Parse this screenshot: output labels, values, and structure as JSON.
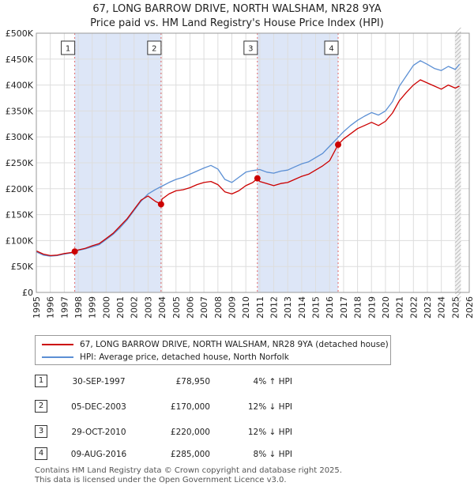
{
  "title_line1": "67, LONG BARROW DRIVE, NORTH WALSHAM, NR28 9YA",
  "title_line2": "Price paid vs. HM Land Registry's House Price Index (HPI)",
  "colors": {
    "price": "#cc0000",
    "hpi": "#5b8fd4",
    "shade": "#dde6f7",
    "grid": "#dddddd"
  },
  "legend": {
    "price_label": "67, LONG BARROW DRIVE, NORTH WALSHAM, NR28 9YA (detached house)",
    "hpi_label": "HPI: Average price, detached house, North Norfolk"
  },
  "sales": [
    {
      "num": "1",
      "date": "30-SEP-1997",
      "price": "£78,950",
      "hpi": "4% ↑ HPI"
    },
    {
      "num": "2",
      "date": "05-DEC-2003",
      "price": "£170,000",
      "hpi": "12% ↓ HPI"
    },
    {
      "num": "3",
      "date": "29-OCT-2010",
      "price": "£220,000",
      "hpi": "12% ↓ HPI"
    },
    {
      "num": "4",
      "date": "09-AUG-2016",
      "price": "£285,000",
      "hpi": "8% ↓ HPI"
    }
  ],
  "footer_line1": "Contains HM Land Registry data © Crown copyright and database right 2025.",
  "footer_line2": "This data is licensed under the Open Government Licence v3.0.",
  "chart_data": {
    "type": "line",
    "title": "67, LONG BARROW DRIVE, NORTH WALSHAM, NR28 9YA — Price paid vs. HM Land Registry's House Price Index (HPI)",
    "xlabel": "",
    "ylabel": "",
    "xlim": [
      1995,
      2026
    ],
    "ylim": [
      0,
      500000
    ],
    "x_ticks": [
      1995,
      1996,
      1997,
      1998,
      1999,
      2000,
      2001,
      2002,
      2003,
      2004,
      2005,
      2006,
      2007,
      2008,
      2009,
      2010,
      2011,
      2012,
      2013,
      2014,
      2015,
      2016,
      2017,
      2018,
      2019,
      2020,
      2021,
      2022,
      2023,
      2024,
      2025,
      2026
    ],
    "y_ticks": [
      {
        "value": 0,
        "label": "£0"
      },
      {
        "value": 50000,
        "label": "£50K"
      },
      {
        "value": 100000,
        "label": "£100K"
      },
      {
        "value": 150000,
        "label": "£150K"
      },
      {
        "value": 200000,
        "label": "£200K"
      },
      {
        "value": 250000,
        "label": "£250K"
      },
      {
        "value": 300000,
        "label": "£300K"
      },
      {
        "value": 350000,
        "label": "£350K"
      },
      {
        "value": 400000,
        "label": "£400K"
      },
      {
        "value": 450000,
        "label": "£450K"
      },
      {
        "value": 500000,
        "label": "£500K"
      }
    ],
    "shaded_periods": [
      [
        1997.75,
        2003.93
      ],
      [
        2010.83,
        2016.61
      ]
    ],
    "forecast_start": 2025.0,
    "markers": [
      {
        "label": "1",
        "x": 1997.75,
        "y": 78950
      },
      {
        "label": "2",
        "x": 2003.93,
        "y": 170000
      },
      {
        "label": "3",
        "x": 2010.83,
        "y": 220000
      },
      {
        "label": "4",
        "x": 2016.61,
        "y": 285000
      }
    ],
    "series": [
      {
        "name": "HPI: Average price, detached house, North Norfolk",
        "x": [
          1995,
          1995.5,
          1996,
          1996.5,
          1997,
          1997.5,
          1998,
          1998.5,
          1999,
          1999.5,
          2000,
          2000.5,
          2001,
          2001.5,
          2002,
          2002.5,
          2003,
          2003.5,
          2004,
          2004.5,
          2005,
          2005.5,
          2006,
          2006.5,
          2007,
          2007.5,
          2008,
          2008.5,
          2009,
          2009.5,
          2010,
          2010.5,
          2011,
          2011.5,
          2012,
          2012.5,
          2013,
          2013.5,
          2014,
          2014.5,
          2015,
          2015.5,
          2016,
          2016.5,
          2017,
          2017.5,
          2018,
          2018.5,
          2019,
          2019.5,
          2020,
          2020.5,
          2021,
          2021.5,
          2022,
          2022.5,
          2023,
          2023.5,
          2024,
          2024.5,
          2025,
          2025.3
        ],
        "values": [
          78000,
          72000,
          70000,
          71000,
          74000,
          76000,
          81000,
          84000,
          88000,
          92000,
          102000,
          112000,
          125000,
          140000,
          158000,
          176000,
          190000,
          198000,
          205000,
          212000,
          218000,
          222000,
          228000,
          234000,
          240000,
          245000,
          238000,
          218000,
          212000,
          222000,
          232000,
          235000,
          237000,
          232000,
          230000,
          234000,
          236000,
          242000,
          248000,
          252000,
          260000,
          268000,
          282000,
          296000,
          310000,
          322000,
          332000,
          340000,
          347000,
          342000,
          350000,
          368000,
          398000,
          418000,
          438000,
          447000,
          440000,
          432000,
          428000,
          436000,
          430000,
          440000
        ]
      },
      {
        "name": "67, LONG BARROW DRIVE, NORTH WALSHAM, NR28 9YA (detached house)",
        "x": [
          1995,
          1995.5,
          1996,
          1996.5,
          1997,
          1997.5,
          1997.75,
          1998,
          1998.5,
          1999,
          1999.5,
          2000,
          2000.5,
          2001,
          2001.5,
          2002,
          2002.5,
          2003,
          2003.5,
          2003.93,
          2004,
          2004.5,
          2005,
          2005.5,
          2006,
          2006.5,
          2007,
          2007.5,
          2008,
          2008.5,
          2009,
          2009.5,
          2010,
          2010.5,
          2010.83,
          2011,
          2011.5,
          2012,
          2012.5,
          2013,
          2013.5,
          2014,
          2014.5,
          2015,
          2015.5,
          2016,
          2016.61,
          2017,
          2017.5,
          2018,
          2018.5,
          2019,
          2019.5,
          2020,
          2020.5,
          2021,
          2021.5,
          2022,
          2022.5,
          2023,
          2023.5,
          2024,
          2024.5,
          2025,
          2025.3
        ],
        "values": [
          80000,
          74000,
          71000,
          72000,
          75000,
          77000,
          78950,
          82000,
          85000,
          90000,
          94000,
          104000,
          114000,
          128000,
          142000,
          160000,
          178000,
          186000,
          176000,
          170000,
          180000,
          190000,
          196000,
          198000,
          202000,
          208000,
          212000,
          214000,
          208000,
          194000,
          190000,
          196000,
          206000,
          212000,
          220000,
          214000,
          210000,
          206000,
          210000,
          212000,
          218000,
          224000,
          228000,
          236000,
          244000,
          254000,
          285000,
          296000,
          306000,
          316000,
          322000,
          328000,
          322000,
          330000,
          346000,
          370000,
          386000,
          400000,
          410000,
          404000,
          398000,
          392000,
          400000,
          394000,
          398000
        ]
      }
    ]
  }
}
